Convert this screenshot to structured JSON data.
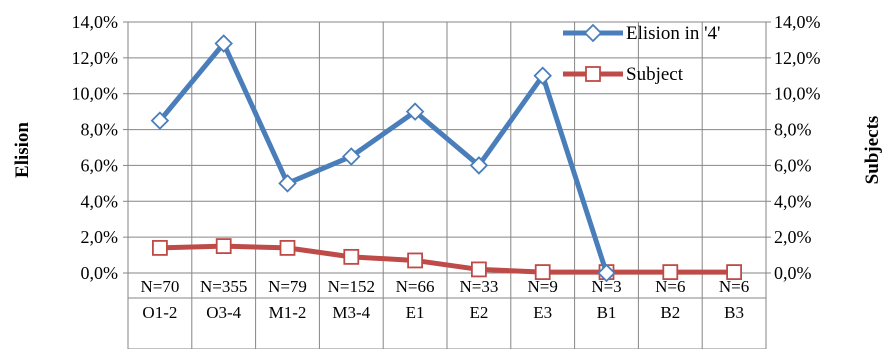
{
  "chart_data": {
    "type": "line",
    "title": "",
    "ylabel": "Elision",
    "ylabel_right": "Subjects",
    "ylim": [
      0,
      0.14
    ],
    "y_ticks": [
      "0,0%",
      "2,0%",
      "4,0%",
      "6,0%",
      "8,0%",
      "10,0%",
      "12,0%",
      "14,0%"
    ],
    "y2_ticks": [
      "0,0%",
      "2,0%",
      "4,0%",
      "6,0%",
      "8,0%",
      "10,0%",
      "12,0%",
      "14,0%"
    ],
    "grid": true,
    "legend_position": "top-right",
    "categories": [
      "O1-2",
      "O3-4",
      "M1-2",
      "M3-4",
      "E1",
      "E2",
      "E3",
      "B1",
      "B2",
      "B3"
    ],
    "counts": [
      "N=70",
      "N=355",
      "N=79",
      "N=152",
      "N=66",
      "N=33",
      "N=9",
      "N=3",
      "N=6",
      "N=6"
    ],
    "series": [
      {
        "name": "Elision in '4'",
        "axis": "left",
        "color": "#4a7ebb",
        "marker": "diamond",
        "values": [
          0.085,
          0.128,
          0.05,
          0.065,
          0.09,
          0.06,
          0.11,
          0.0,
          0.0,
          0.0
        ],
        "present": [
          true,
          true,
          true,
          true,
          true,
          true,
          true,
          true,
          false,
          false
        ]
      },
      {
        "name": "Subject",
        "axis": "right",
        "color": "#be4b48",
        "marker": "square",
        "values": [
          0.014,
          0.015,
          0.014,
          0.009,
          0.007,
          0.002,
          0.0005,
          0.0005,
          0.0005,
          0.0005
        ],
        "present": [
          true,
          true,
          true,
          true,
          true,
          true,
          true,
          true,
          true,
          true
        ]
      }
    ]
  }
}
